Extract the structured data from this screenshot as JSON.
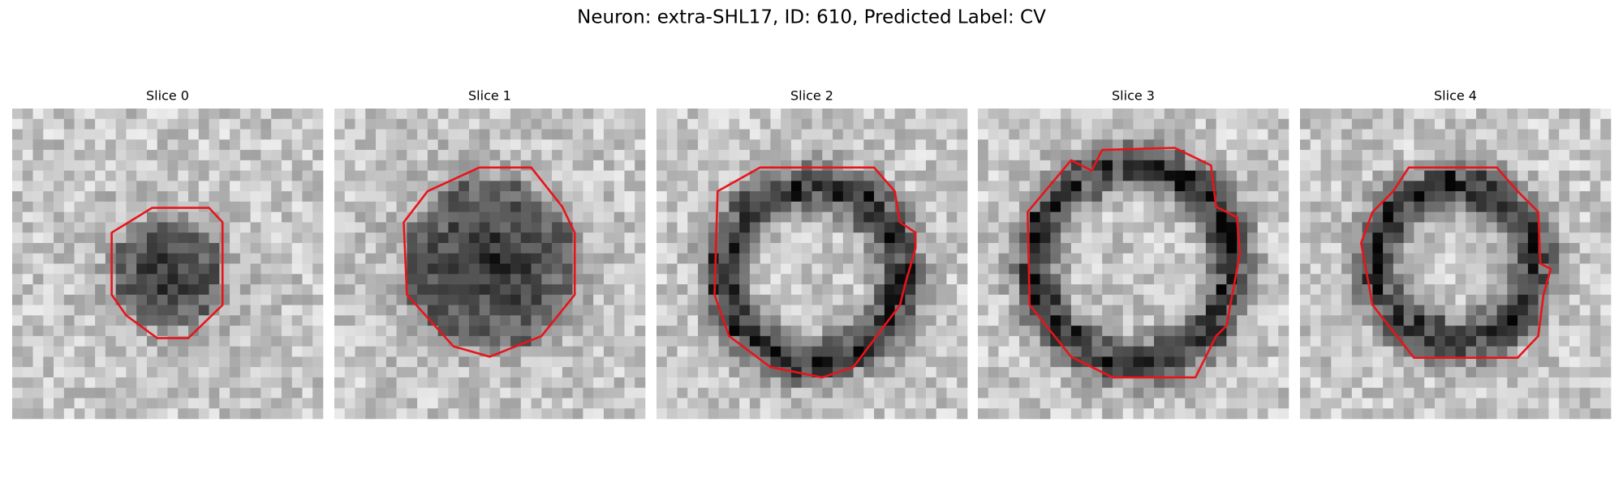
{
  "title": "Neuron: extra-SHL17, ID: 610, Predicted Label: CV",
  "panels": [
    {
      "title": "Slice 0"
    },
    {
      "title": "Slice 1"
    },
    {
      "title": "Slice 2"
    },
    {
      "title": "Slice 3"
    },
    {
      "title": "Slice 4"
    }
  ]
}
